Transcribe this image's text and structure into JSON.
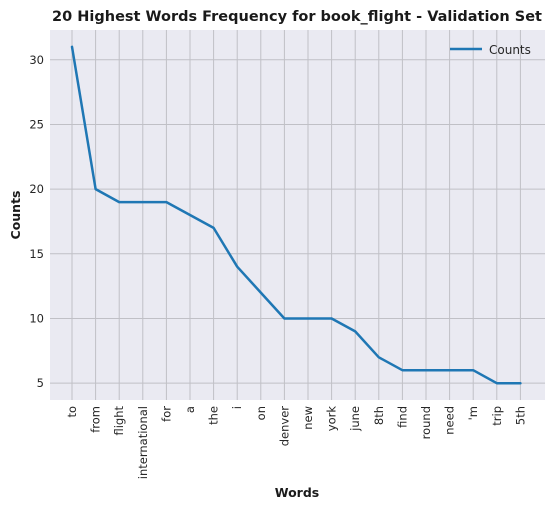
{
  "chart_data": {
    "type": "line",
    "title": "20 Highest Words Frequency for book_flight - Validation Set",
    "xlabel": "Words",
    "ylabel": "Counts",
    "categories": [
      "to",
      "from",
      "flight",
      "international",
      "for",
      "a",
      "the",
      "i",
      "on",
      "denver",
      "new",
      "york",
      "june",
      "8th",
      "find",
      "round",
      "need",
      "'m",
      "trip",
      "5th"
    ],
    "series": [
      {
        "name": "Counts",
        "values": [
          31,
          20,
          19,
          19,
          19,
          18,
          17,
          14,
          12,
          10,
          10,
          10,
          9,
          7,
          6,
          6,
          6,
          6,
          5,
          5
        ]
      }
    ],
    "yticks": [
      5,
      10,
      15,
      20,
      25,
      30
    ],
    "ylim": [
      3.7,
      32.3
    ],
    "grid": true,
    "legend": "top-right",
    "colors": {
      "line": "#1f77b4",
      "background": "#eaeaf2",
      "grid": "#c0c0c6"
    }
  }
}
